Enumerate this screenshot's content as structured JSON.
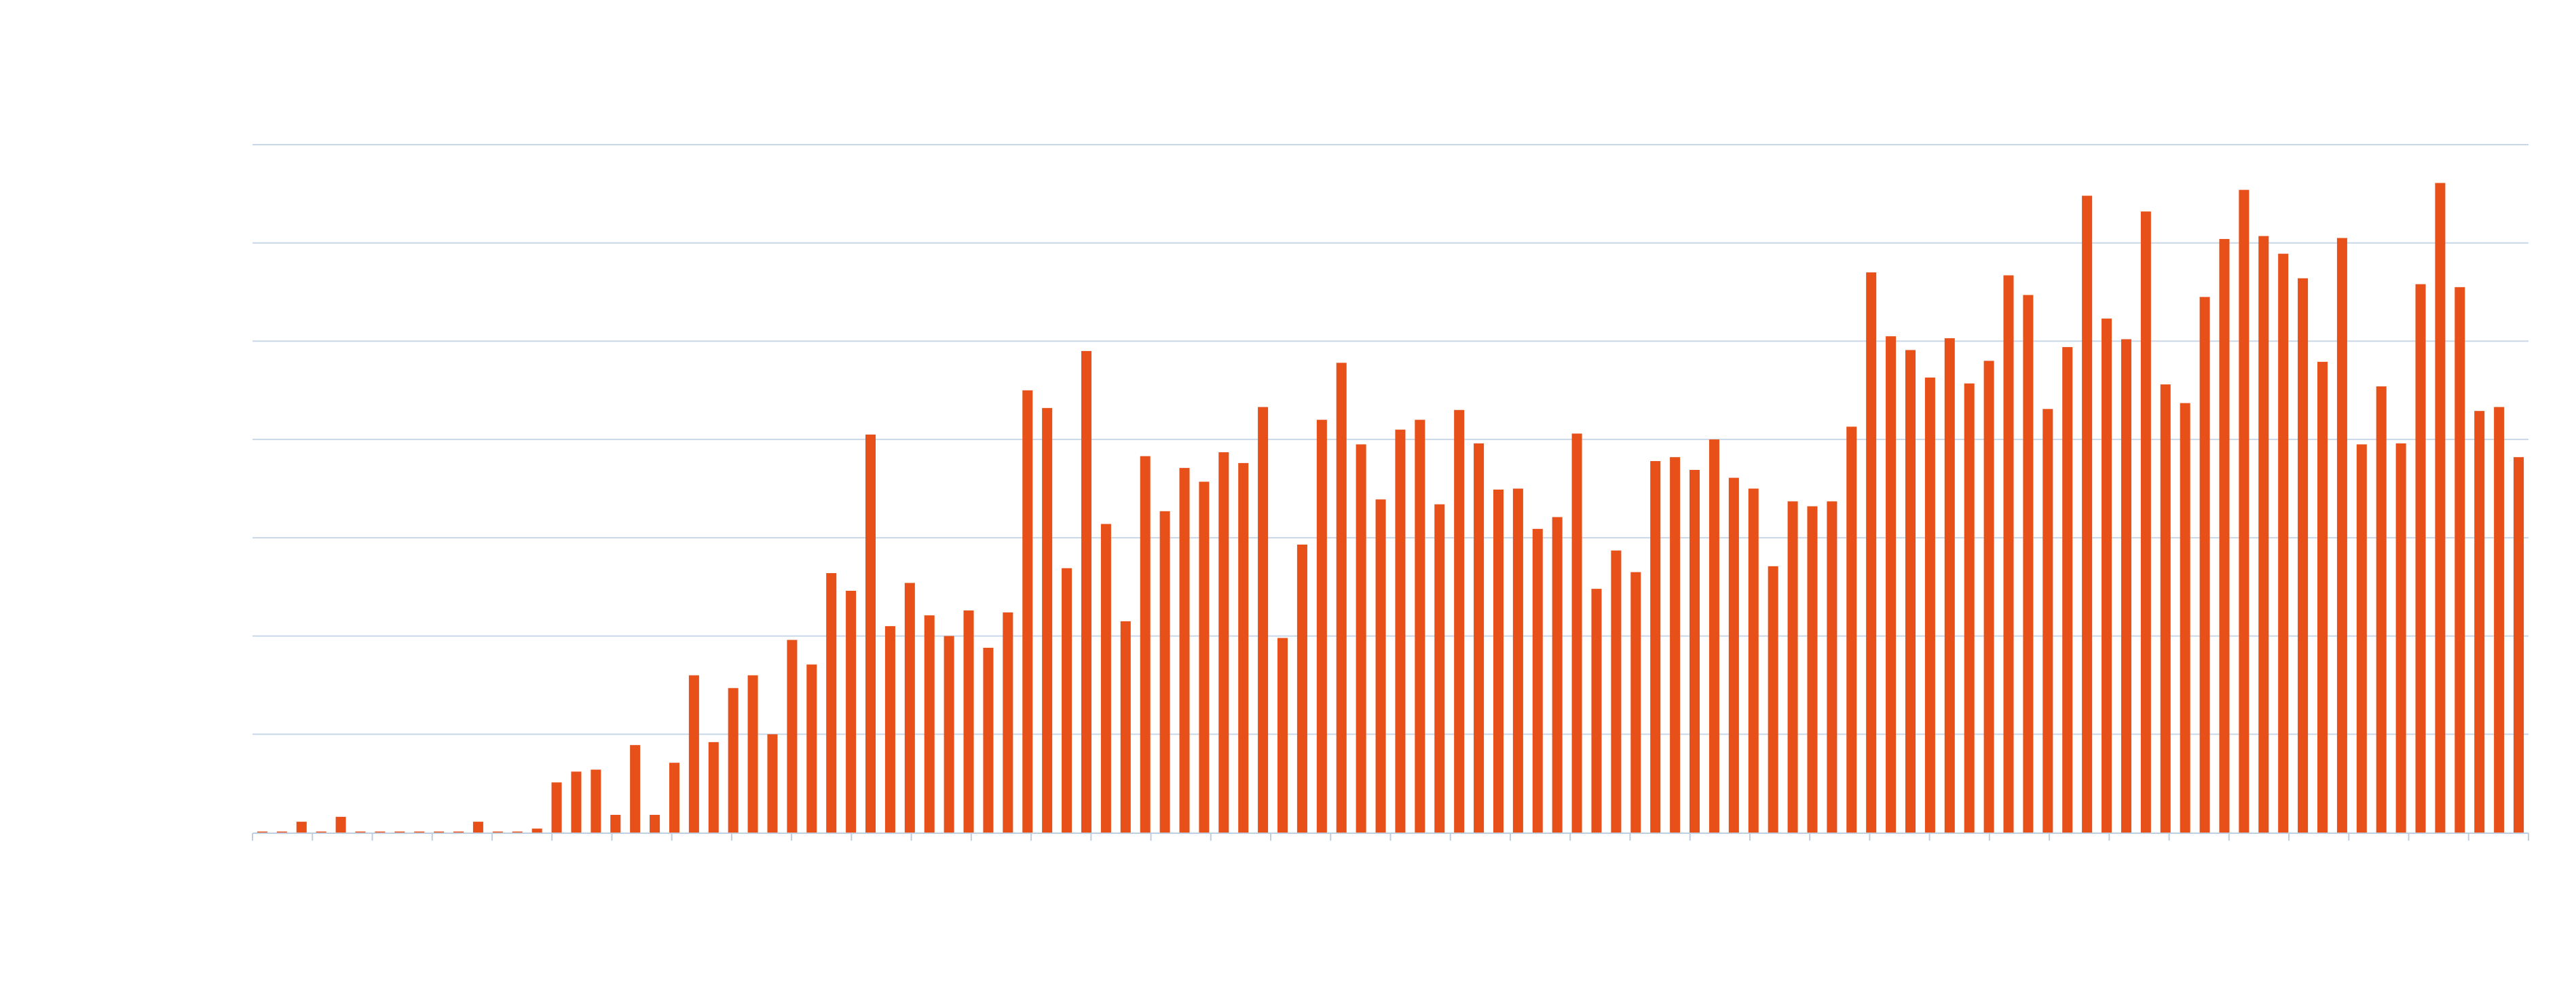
{
  "chart_data": {
    "type": "bar",
    "title": "",
    "xlabel": "",
    "ylabel": "",
    "ylim": [
      0,
      7
    ],
    "grid": true,
    "legend": "none",
    "colors": {
      "bar": "#E8501A",
      "grid": "#C8D8E8",
      "axis": "#BFCFDF"
    },
    "x_tick_count": 39,
    "values": [
      0.01,
      0.01,
      0.11,
      0.01,
      0.16,
      0.01,
      0.01,
      0.01,
      0.01,
      0.01,
      0.01,
      0.11,
      0.01,
      0.01,
      0.04,
      0.51,
      0.62,
      0.64,
      0.18,
      0.89,
      0.18,
      0.71,
      1.6,
      0.92,
      1.47,
      1.6,
      1.0,
      1.96,
      1.71,
      2.64,
      2.46,
      4.05,
      2.1,
      2.54,
      2.21,
      2.0,
      2.26,
      1.88,
      2.24,
      4.5,
      4.32,
      2.69,
      4.9,
      3.14,
      2.15,
      3.83,
      3.27,
      3.71,
      3.57,
      3.87,
      3.76,
      4.33,
      1.98,
      2.93,
      4.2,
      4.78,
      3.95,
      3.39,
      4.1,
      4.2,
      3.34,
      4.3,
      3.96,
      3.49,
      3.5,
      3.09,
      3.21,
      4.06,
      2.48,
      2.87,
      2.65,
      3.78,
      3.82,
      3.69,
      4.0,
      3.61,
      3.5,
      2.71,
      3.37,
      3.32,
      3.37,
      4.13,
      5.7,
      5.05,
      4.91,
      4.63,
      5.03,
      4.57,
      4.8,
      5.67,
      5.47,
      4.31,
      4.94,
      6.48,
      5.23,
      5.02,
      6.32,
      4.56,
      4.37,
      5.45,
      6.04,
      6.54,
      6.07,
      5.89,
      5.64,
      4.79,
      6.05,
      3.95,
      4.54,
      3.96,
      5.58,
      6.61,
      5.55,
      4.29,
      4.33,
      3.82
    ]
  }
}
